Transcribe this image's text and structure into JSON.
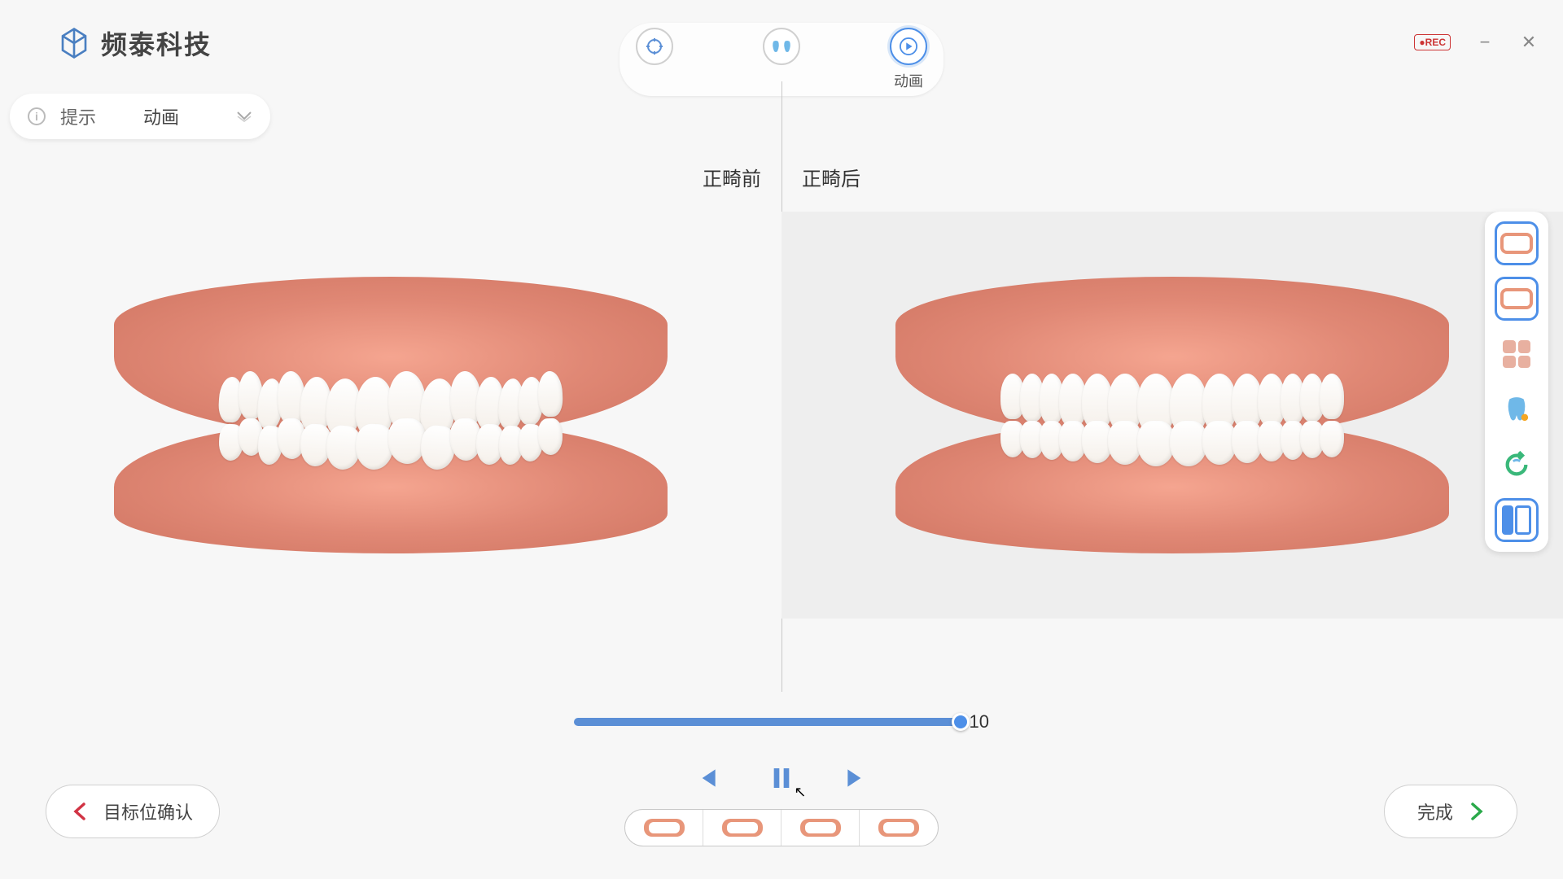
{
  "brand": {
    "name": "频泰科技"
  },
  "topTools": {
    "target": {
      "label": ""
    },
    "compare": {
      "label": ""
    },
    "animation": {
      "label": "动画",
      "active": true
    }
  },
  "windowControls": {
    "rec": "●REC"
  },
  "hint": {
    "label": "提示",
    "value": "动画"
  },
  "panes": {
    "before": "正畸前",
    "after": "正畸后"
  },
  "timeline": {
    "value": "10",
    "progress": 100
  },
  "bottomNav": {
    "back": "目标位确认",
    "next": "完成"
  },
  "sideTools": [
    {
      "id": "front-view",
      "type": "teeth",
      "active": true
    },
    {
      "id": "open-view",
      "type": "teeth",
      "active": true
    },
    {
      "id": "grid-view",
      "type": "grid",
      "active": false
    },
    {
      "id": "single-tooth",
      "type": "tooth",
      "active": false
    },
    {
      "id": "refresh",
      "type": "refresh",
      "active": false
    },
    {
      "id": "compare",
      "type": "compare",
      "active": true
    }
  ],
  "viewThumbs": 4,
  "teethPerRow": 14,
  "colors": {
    "accent": "#4d8fe8",
    "gum": "#e8967a",
    "tooth": "#fdfcf8"
  }
}
